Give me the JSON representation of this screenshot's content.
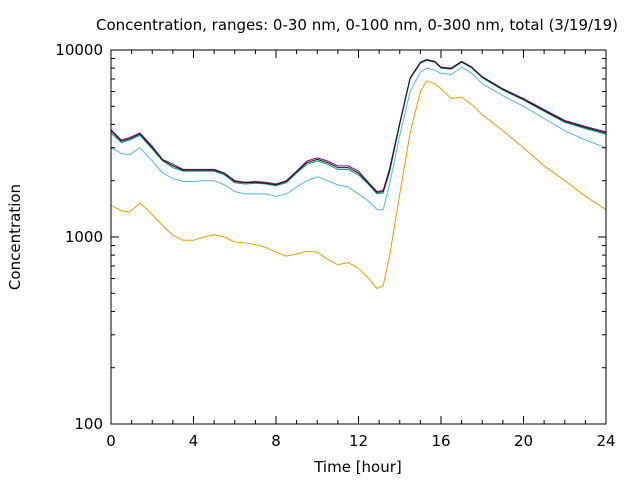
{
  "chart_data": {
    "type": "line",
    "title": "Concentration, ranges: 0-30 nm, 0-100 nm, 0-300 nm, total (3/19/19)",
    "xlabel": "Time [hour]",
    "ylabel": "Concentration",
    "xlim": [
      0,
      24
    ],
    "ylim": [
      100,
      10000
    ],
    "yscale": "log",
    "grid": false,
    "legend": "none",
    "xticks": [
      0,
      4,
      8,
      12,
      16,
      20,
      24
    ],
    "xtick_labels": [
      "0",
      "4",
      "8",
      "12",
      "16",
      "20",
      "24"
    ],
    "yticks": [
      100,
      1000,
      10000
    ],
    "ytick_labels": [
      "100",
      "1000",
      "10000"
    ],
    "series": [
      {
        "color": "#e69f00",
        "x": [
          0,
          0.5,
          0.9,
          1.4,
          2,
          2.5,
          3,
          3.5,
          4,
          4.5,
          5,
          5.5,
          6,
          6.5,
          7,
          7.5,
          8,
          8.5,
          9,
          9.5,
          10,
          10.5,
          11,
          11.5,
          12,
          12.5,
          12.9,
          13.2,
          13.5,
          14,
          14.5,
          15,
          15.3,
          15.7,
          16,
          16.5,
          17,
          17.5,
          18,
          19,
          20,
          21,
          22,
          23,
          24
        ],
        "values": [
          1480,
          1380,
          1360,
          1520,
          1320,
          1150,
          1020,
          960,
          960,
          1000,
          1030,
          1000,
          940,
          930,
          910,
          880,
          830,
          790,
          810,
          840,
          830,
          760,
          710,
          730,
          680,
          600,
          530,
          550,
          780,
          1700,
          3600,
          6000,
          6800,
          6600,
          6200,
          5500,
          5600,
          5100,
          4500,
          3700,
          3000,
          2400,
          2000,
          1650,
          1400
        ]
      },
      {
        "color": "#56b4e9",
        "x": [
          0,
          0.5,
          0.9,
          1.4,
          2,
          2.5,
          3,
          3.5,
          4,
          4.5,
          5,
          5.5,
          6,
          6.5,
          7,
          7.5,
          8,
          8.5,
          9,
          9.5,
          10,
          10.5,
          11,
          11.5,
          12,
          12.5,
          12.9,
          13.2,
          13.5,
          14,
          14.5,
          15,
          15.3,
          15.7,
          16,
          16.5,
          17,
          17.5,
          18,
          19,
          20,
          21,
          22,
          23,
          24
        ],
        "values": [
          3000,
          2800,
          2750,
          3000,
          2550,
          2200,
          2050,
          1980,
          1980,
          2000,
          2000,
          1900,
          1750,
          1700,
          1700,
          1700,
          1650,
          1700,
          1850,
          2000,
          2100,
          2000,
          1900,
          1850,
          1700,
          1550,
          1400,
          1400,
          1900,
          3500,
          6000,
          7600,
          8000,
          7800,
          7500,
          7400,
          8100,
          7500,
          6600,
          5700,
          5000,
          4300,
          3700,
          3300,
          3000
        ]
      },
      {
        "color": "#009e73",
        "x": [
          0,
          0.5,
          0.9,
          1.4,
          2,
          2.5,
          3,
          3.5,
          4,
          4.5,
          5,
          5.5,
          6,
          6.5,
          7,
          7.5,
          8,
          8.5,
          9,
          9.5,
          10,
          10.5,
          11,
          11.5,
          12,
          12.5,
          12.9,
          13.2,
          13.5,
          14,
          14.5,
          15,
          15.3,
          15.7,
          16,
          16.5,
          17,
          17.5,
          18,
          19,
          20,
          21,
          22,
          23,
          24
        ],
        "values": [
          3600,
          3200,
          3300,
          3500,
          2950,
          2550,
          2350,
          2250,
          2250,
          2250,
          2250,
          2150,
          1950,
          1920,
          1940,
          1920,
          1880,
          1950,
          2200,
          2450,
          2550,
          2450,
          2300,
          2300,
          2150,
          1900,
          1700,
          1720,
          2200,
          4000,
          7000,
          8500,
          8800,
          8600,
          8000,
          7900,
          8600,
          8000,
          7100,
          6100,
          5400,
          4700,
          4100,
          3800,
          3550
        ]
      },
      {
        "color": "#8b008b",
        "x": [
          0,
          0.5,
          0.9,
          1.4,
          2,
          2.5,
          3,
          3.5,
          4,
          4.5,
          5,
          5.5,
          6,
          6.5,
          7,
          7.5,
          8,
          8.5,
          9,
          9.5,
          10,
          10.5,
          11,
          11.5,
          12,
          12.5,
          12.9,
          13.2,
          13.5,
          14,
          14.5,
          15,
          15.3,
          15.7,
          16,
          16.5,
          17,
          17.5,
          18,
          19,
          20,
          21,
          22,
          23,
          24
        ],
        "values": [
          3750,
          3300,
          3400,
          3600,
          3050,
          2600,
          2450,
          2300,
          2300,
          2300,
          2300,
          2200,
          2000,
          1960,
          1980,
          1960,
          1920,
          2000,
          2250,
          2550,
          2650,
          2550,
          2400,
          2400,
          2250,
          1950,
          1750,
          1780,
          2300,
          4100,
          7100,
          8600,
          8900,
          8700,
          8100,
          8000,
          8700,
          8100,
          7200,
          6200,
          5500,
          4800,
          4200,
          3900,
          3650
        ]
      },
      {
        "color": "#1a1a1a",
        "x": [
          0,
          0.5,
          0.9,
          1.4,
          2,
          2.5,
          3,
          3.5,
          4,
          4.5,
          5,
          5.5,
          6,
          6.5,
          7,
          7.5,
          8,
          8.5,
          9,
          9.5,
          10,
          10.5,
          11,
          11.5,
          12,
          12.5,
          12.9,
          13.2,
          13.5,
          14,
          14.5,
          15,
          15.3,
          15.7,
          16,
          16.5,
          17,
          17.5,
          18,
          19,
          20,
          21,
          22,
          23,
          24
        ],
        "values": [
          3700,
          3250,
          3350,
          3550,
          3000,
          2580,
          2400,
          2280,
          2280,
          2280,
          2280,
          2180,
          1980,
          1950,
          1960,
          1940,
          1900,
          1980,
          2230,
          2500,
          2600,
          2500,
          2350,
          2350,
          2200,
          1930,
          1730,
          1750,
          2250,
          4050,
          7050,
          8550,
          8850,
          8650,
          8050,
          7950,
          8650,
          8050,
          7150,
          6150,
          5450,
          4750,
          4150,
          3850,
          3600
        ]
      }
    ]
  }
}
